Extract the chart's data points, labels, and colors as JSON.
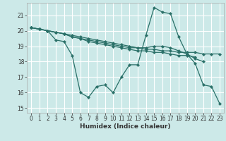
{
  "xlabel": "Humidex (Indice chaleur)",
  "bg_color": "#cce9e8",
  "grid_color": "#ffffff",
  "line_color": "#2a7068",
  "ylim": [
    14.7,
    21.8
  ],
  "xlim": [
    -0.5,
    23.5
  ],
  "yticks": [
    15,
    16,
    17,
    18,
    19,
    20,
    21
  ],
  "xticks": [
    0,
    1,
    2,
    3,
    4,
    5,
    6,
    7,
    8,
    9,
    10,
    11,
    12,
    13,
    14,
    15,
    16,
    17,
    18,
    19,
    20,
    21,
    22,
    23
  ],
  "line1_x": [
    0,
    1,
    2,
    3,
    4,
    5,
    6,
    7,
    8,
    9,
    10,
    11,
    12,
    13,
    14,
    15,
    16,
    17,
    18,
    19,
    20,
    21,
    22,
    23
  ],
  "line1_y": [
    20.2,
    20.1,
    20.0,
    19.4,
    19.3,
    18.4,
    16.0,
    15.7,
    16.4,
    16.5,
    16.0,
    17.0,
    17.8,
    17.8,
    19.7,
    21.5,
    21.2,
    21.1,
    19.6,
    18.5,
    17.9,
    16.5,
    16.4,
    15.3
  ],
  "line2_x": [
    0,
    1,
    2,
    3,
    4,
    5,
    6,
    7,
    8,
    9,
    10,
    11,
    12,
    13,
    14,
    15,
    16,
    17,
    18,
    19,
    20,
    21,
    22,
    23
  ],
  "line2_y": [
    20.2,
    20.1,
    20.0,
    19.9,
    19.8,
    19.7,
    19.6,
    19.5,
    19.4,
    19.3,
    19.2,
    19.1,
    19.0,
    18.9,
    18.8,
    18.8,
    18.7,
    18.7,
    18.6,
    18.6,
    18.6,
    18.5,
    18.5,
    18.5
  ],
  "line3_x": [
    0,
    1,
    2,
    3,
    4,
    5,
    6,
    7,
    8,
    9,
    10,
    11,
    12,
    13,
    14,
    15,
    16,
    17,
    18,
    19,
    20,
    21,
    22,
    23
  ],
  "line3_y": [
    20.2,
    20.1,
    20.0,
    19.9,
    19.8,
    19.6,
    19.5,
    19.4,
    19.3,
    19.2,
    19.1,
    19.0,
    18.9,
    18.9,
    18.9,
    19.0,
    19.0,
    18.9,
    18.7,
    18.5,
    18.2,
    18.0,
    null,
    null
  ],
  "line4_x": [
    0,
    1,
    2,
    3,
    4,
    5,
    6,
    7,
    8,
    9,
    10,
    11,
    12,
    13,
    14,
    15,
    16,
    17,
    18,
    19,
    20
  ],
  "line4_y": [
    20.2,
    20.1,
    20.0,
    19.9,
    19.8,
    19.6,
    19.5,
    19.3,
    19.2,
    19.1,
    19.0,
    18.9,
    18.8,
    18.7,
    18.7,
    18.6,
    18.6,
    18.5,
    18.4,
    18.4,
    18.3
  ]
}
